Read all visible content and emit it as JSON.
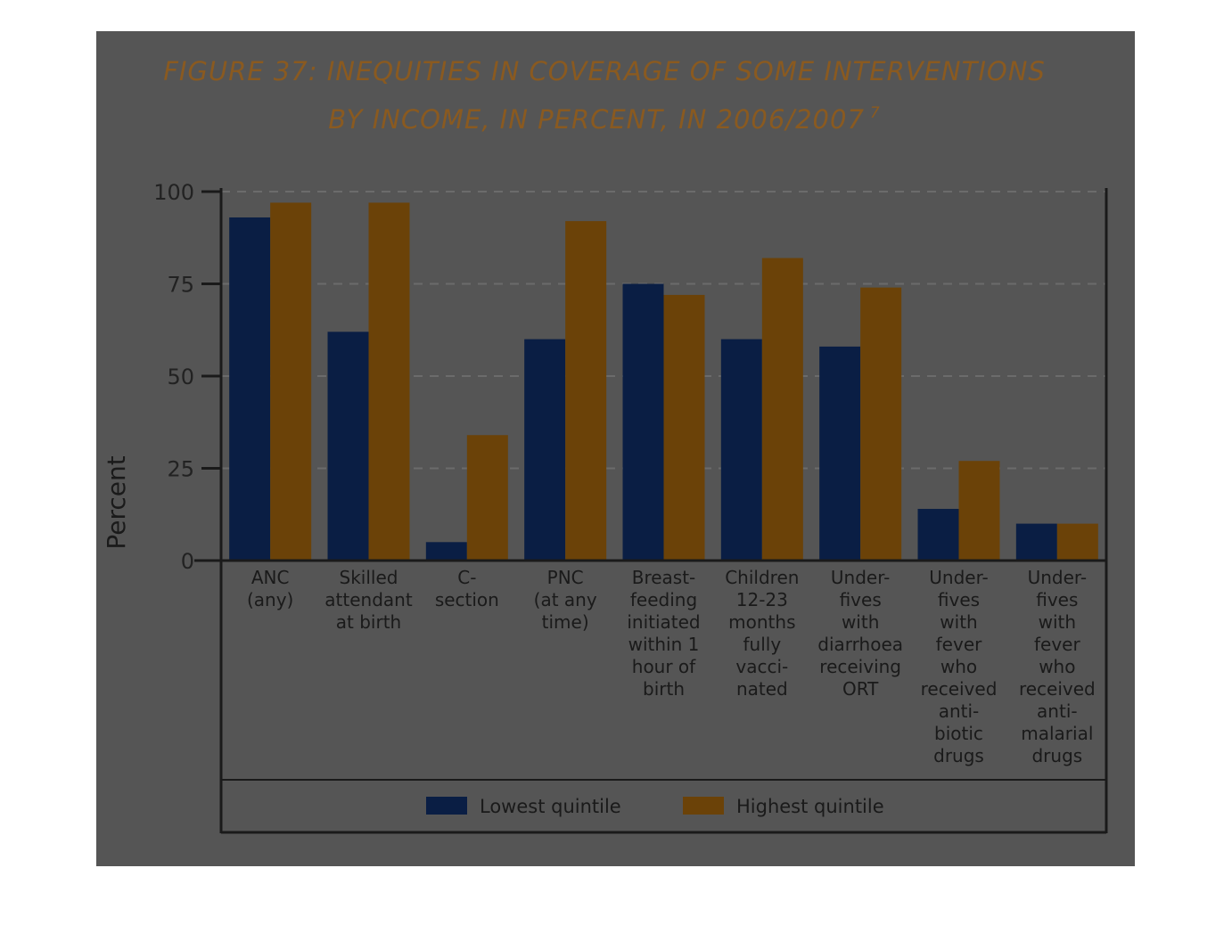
{
  "chart_data": {
    "type": "bar",
    "title": "FIGURE 37: INEQUITIES IN COVERAGE OF SOME INTERVENTIONS BY INCOME, IN PERCENT, IN 2006/2007",
    "title_lines": [
      "FIGURE 37: INEQUITIES IN COVERAGE OF SOME INTERVENTIONS",
      "BY INCOME, IN PERCENT, IN 2006/2007"
    ],
    "title_superscript": "7",
    "xlabel": "",
    "ylabel": "Percent",
    "ylim": [
      0,
      100
    ],
    "yticks": [
      "0",
      "25",
      "50",
      "75",
      "100"
    ],
    "grid": "horizontal dashed",
    "legend_position": "bottom",
    "categories": [
      "ANC (any)",
      "Skilled attendant at birth",
      "C-section",
      "PNC (at any time)",
      "Breast-feeding initiated within 1 hour of birth",
      "Children 12-23 months fully vacci-nated",
      "Under-fives with diarrhoea receiving ORT",
      "Under-fives with fever who received anti-biotic drugs",
      "Under-fives with fever who received anti-malarial drugs"
    ],
    "category_lines": [
      [
        "ANC",
        "(any)"
      ],
      [
        "Skilled",
        "attendant",
        "at birth"
      ],
      [
        "C-",
        "section"
      ],
      [
        "PNC",
        "(at any",
        "time)"
      ],
      [
        "Breast-",
        "feeding",
        "initiated",
        "within 1",
        "hour of",
        "birth"
      ],
      [
        "Children",
        "12-23",
        "months",
        "fully",
        "vacci-",
        "nated"
      ],
      [
        "Under-",
        "fives",
        "with",
        "diarrhoea",
        "receiving",
        "ORT"
      ],
      [
        "Under-",
        "fives",
        "with",
        "fever",
        "who",
        "received",
        "anti-",
        "biotic",
        "drugs"
      ],
      [
        "Under-",
        "fives",
        "with",
        "fever",
        "who",
        "received",
        "anti-",
        "malarial",
        "drugs"
      ]
    ],
    "series": [
      {
        "name": "Lowest quintile",
        "color": "#0a1e44",
        "values": [
          93,
          62,
          5,
          60,
          75,
          60,
          58,
          14,
          10
        ]
      },
      {
        "name": "Highest quintile",
        "color": "#6b4208",
        "values": [
          97,
          97,
          34,
          92,
          72,
          82,
          74,
          27,
          10
        ]
      }
    ]
  }
}
